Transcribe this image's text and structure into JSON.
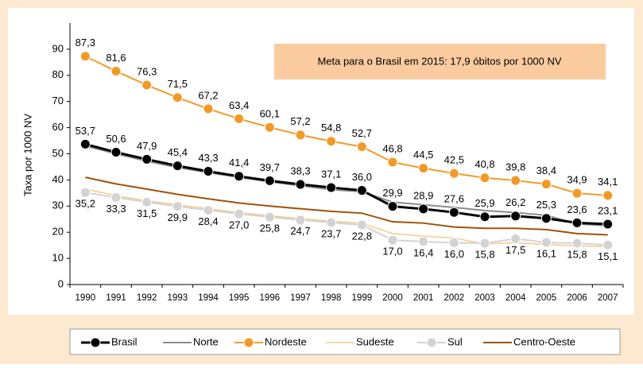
{
  "chart_data": {
    "type": "line",
    "annotation": "Meta para o Brasil em 2015: 17,9 óbitos por 1000 NV",
    "y_label": "Taxa por 1000 NV",
    "categories": [
      "1990",
      "1991",
      "1992",
      "1993",
      "1994",
      "1995",
      "1996",
      "1997",
      "1998",
      "1999",
      "2000",
      "2001",
      "2002",
      "2003",
      "2004",
      "2005",
      "2006",
      "2007"
    ],
    "ylim": [
      0,
      100
    ],
    "yticks": [
      0,
      10,
      20,
      30,
      40,
      50,
      60,
      70,
      80,
      90
    ],
    "series": [
      {
        "name": "Brasil",
        "color": "#000000",
        "width": 3,
        "markers": true,
        "label_position": "above",
        "values": [
          53.7,
          50.6,
          47.9,
          45.4,
          43.3,
          41.4,
          39.7,
          38.3,
          37.1,
          36.0,
          29.9,
          28.9,
          27.6,
          25.9,
          26.2,
          25.3,
          23.6,
          23.1
        ],
        "value_labels": [
          "53,7",
          "50,6",
          "47,9",
          "45,4",
          "43,3",
          "41,4",
          "39,7",
          "38,3",
          "37,1",
          "36,0",
          "29,9",
          "28,9",
          "27,6",
          "25,9",
          "26,2",
          "25,3",
          "23,6",
          "23,1"
        ]
      },
      {
        "name": "Norte",
        "color": "#8c8c8c",
        "width": 2,
        "markers": false,
        "values": [
          53,
          50,
          47.2,
          44.8,
          42.8,
          41,
          39.3,
          37.8,
          36.3,
          35.5,
          31.5,
          30.5,
          29.5,
          28.3,
          27.5,
          26.5,
          23.2,
          22.5
        ]
      },
      {
        "name": "Nordeste",
        "color": "#f29a27",
        "width": 2,
        "markers": true,
        "label_position": "above",
        "values": [
          87.3,
          81.6,
          76.3,
          71.5,
          67.2,
          63.4,
          60.1,
          57.2,
          54.8,
          52.7,
          46.8,
          44.5,
          42.5,
          40.8,
          39.8,
          38.4,
          34.9,
          34.1
        ],
        "value_labels": [
          "87,3",
          "81,6",
          "76,3",
          "71,5",
          "67,2",
          "63,4",
          "60,1",
          "57,2",
          "54,8",
          "52,7",
          "46,8",
          "44,5",
          "42,5",
          "40,8",
          "39,8",
          "38,4",
          "34,9",
          "34,1"
        ]
      },
      {
        "name": "Sudeste",
        "color": "#f5c98a",
        "width": 1.5,
        "markers": false,
        "values": [
          36.5,
          34,
          32,
          30.5,
          29,
          27.5,
          26.3,
          25.2,
          24.2,
          23.5,
          19.5,
          18.5,
          17.8,
          15.5,
          16,
          15.3,
          14.8,
          14.5
        ]
      },
      {
        "name": "Sul",
        "color": "#d3d3d3",
        "width": 2,
        "markers": true,
        "label_position": "below",
        "values": [
          35.2,
          33.3,
          31.5,
          29.9,
          28.4,
          27.0,
          25.8,
          24.7,
          23.7,
          22.8,
          17.0,
          16.4,
          16.0,
          15.8,
          17.5,
          16.1,
          15.8,
          15.1
        ],
        "value_labels": [
          "35,2",
          "33,3",
          "31,5",
          "29,9",
          "28,4",
          "27,0",
          "25,8",
          "24,7",
          "23,7",
          "22,8",
          "17,0",
          "16,4",
          "16,0",
          "15,8",
          "17,5",
          "16,1",
          "15,8",
          "15,1"
        ]
      },
      {
        "name": "Centro-Oeste",
        "color": "#a0520a",
        "width": 2,
        "markers": false,
        "values": [
          41,
          38.5,
          36.5,
          34.5,
          32.8,
          31.2,
          30,
          29,
          28,
          27.3,
          24,
          23.5,
          22,
          21.5,
          21.5,
          21,
          19.5,
          19
        ]
      }
    ]
  }
}
